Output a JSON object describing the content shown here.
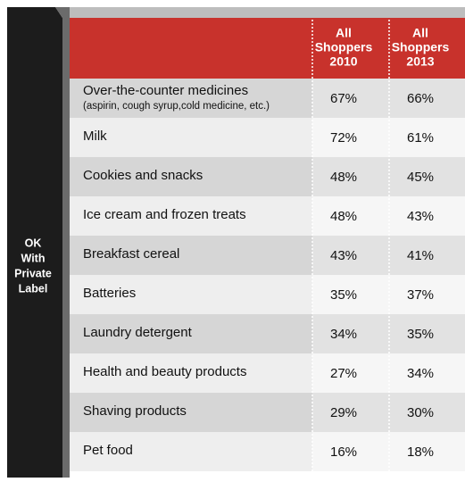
{
  "sidebar": {
    "label": [
      "OK",
      "With",
      "Private",
      "Label"
    ]
  },
  "table": {
    "columns": [
      [
        "All",
        "Shoppers",
        "2010"
      ],
      [
        "All",
        "Shoppers",
        "2013"
      ]
    ],
    "rows": [
      {
        "label": "Over-the-counter medicines",
        "note": "(aspirin, cough syrup,cold medicine, etc.)",
        "values": [
          "67%",
          "66%"
        ]
      },
      {
        "label": "Milk",
        "values": [
          "72%",
          "61%"
        ]
      },
      {
        "label": "Cookies and snacks",
        "values": [
          "48%",
          "45%"
        ]
      },
      {
        "label": "Ice cream and frozen treats",
        "values": [
          "48%",
          "43%"
        ]
      },
      {
        "label": "Breakfast cereal",
        "values": [
          "43%",
          "41%"
        ]
      },
      {
        "label": "Batteries",
        "values": [
          "35%",
          "37%"
        ]
      },
      {
        "label": "Laundry detergent",
        "values": [
          "34%",
          "35%"
        ]
      },
      {
        "label": "Health and beauty products",
        "values": [
          "27%",
          "34%"
        ]
      },
      {
        "label": "Shaving products",
        "values": [
          "29%",
          "30%"
        ]
      },
      {
        "label": "Pet food",
        "values": [
          "16%",
          "18%"
        ]
      }
    ]
  }
}
